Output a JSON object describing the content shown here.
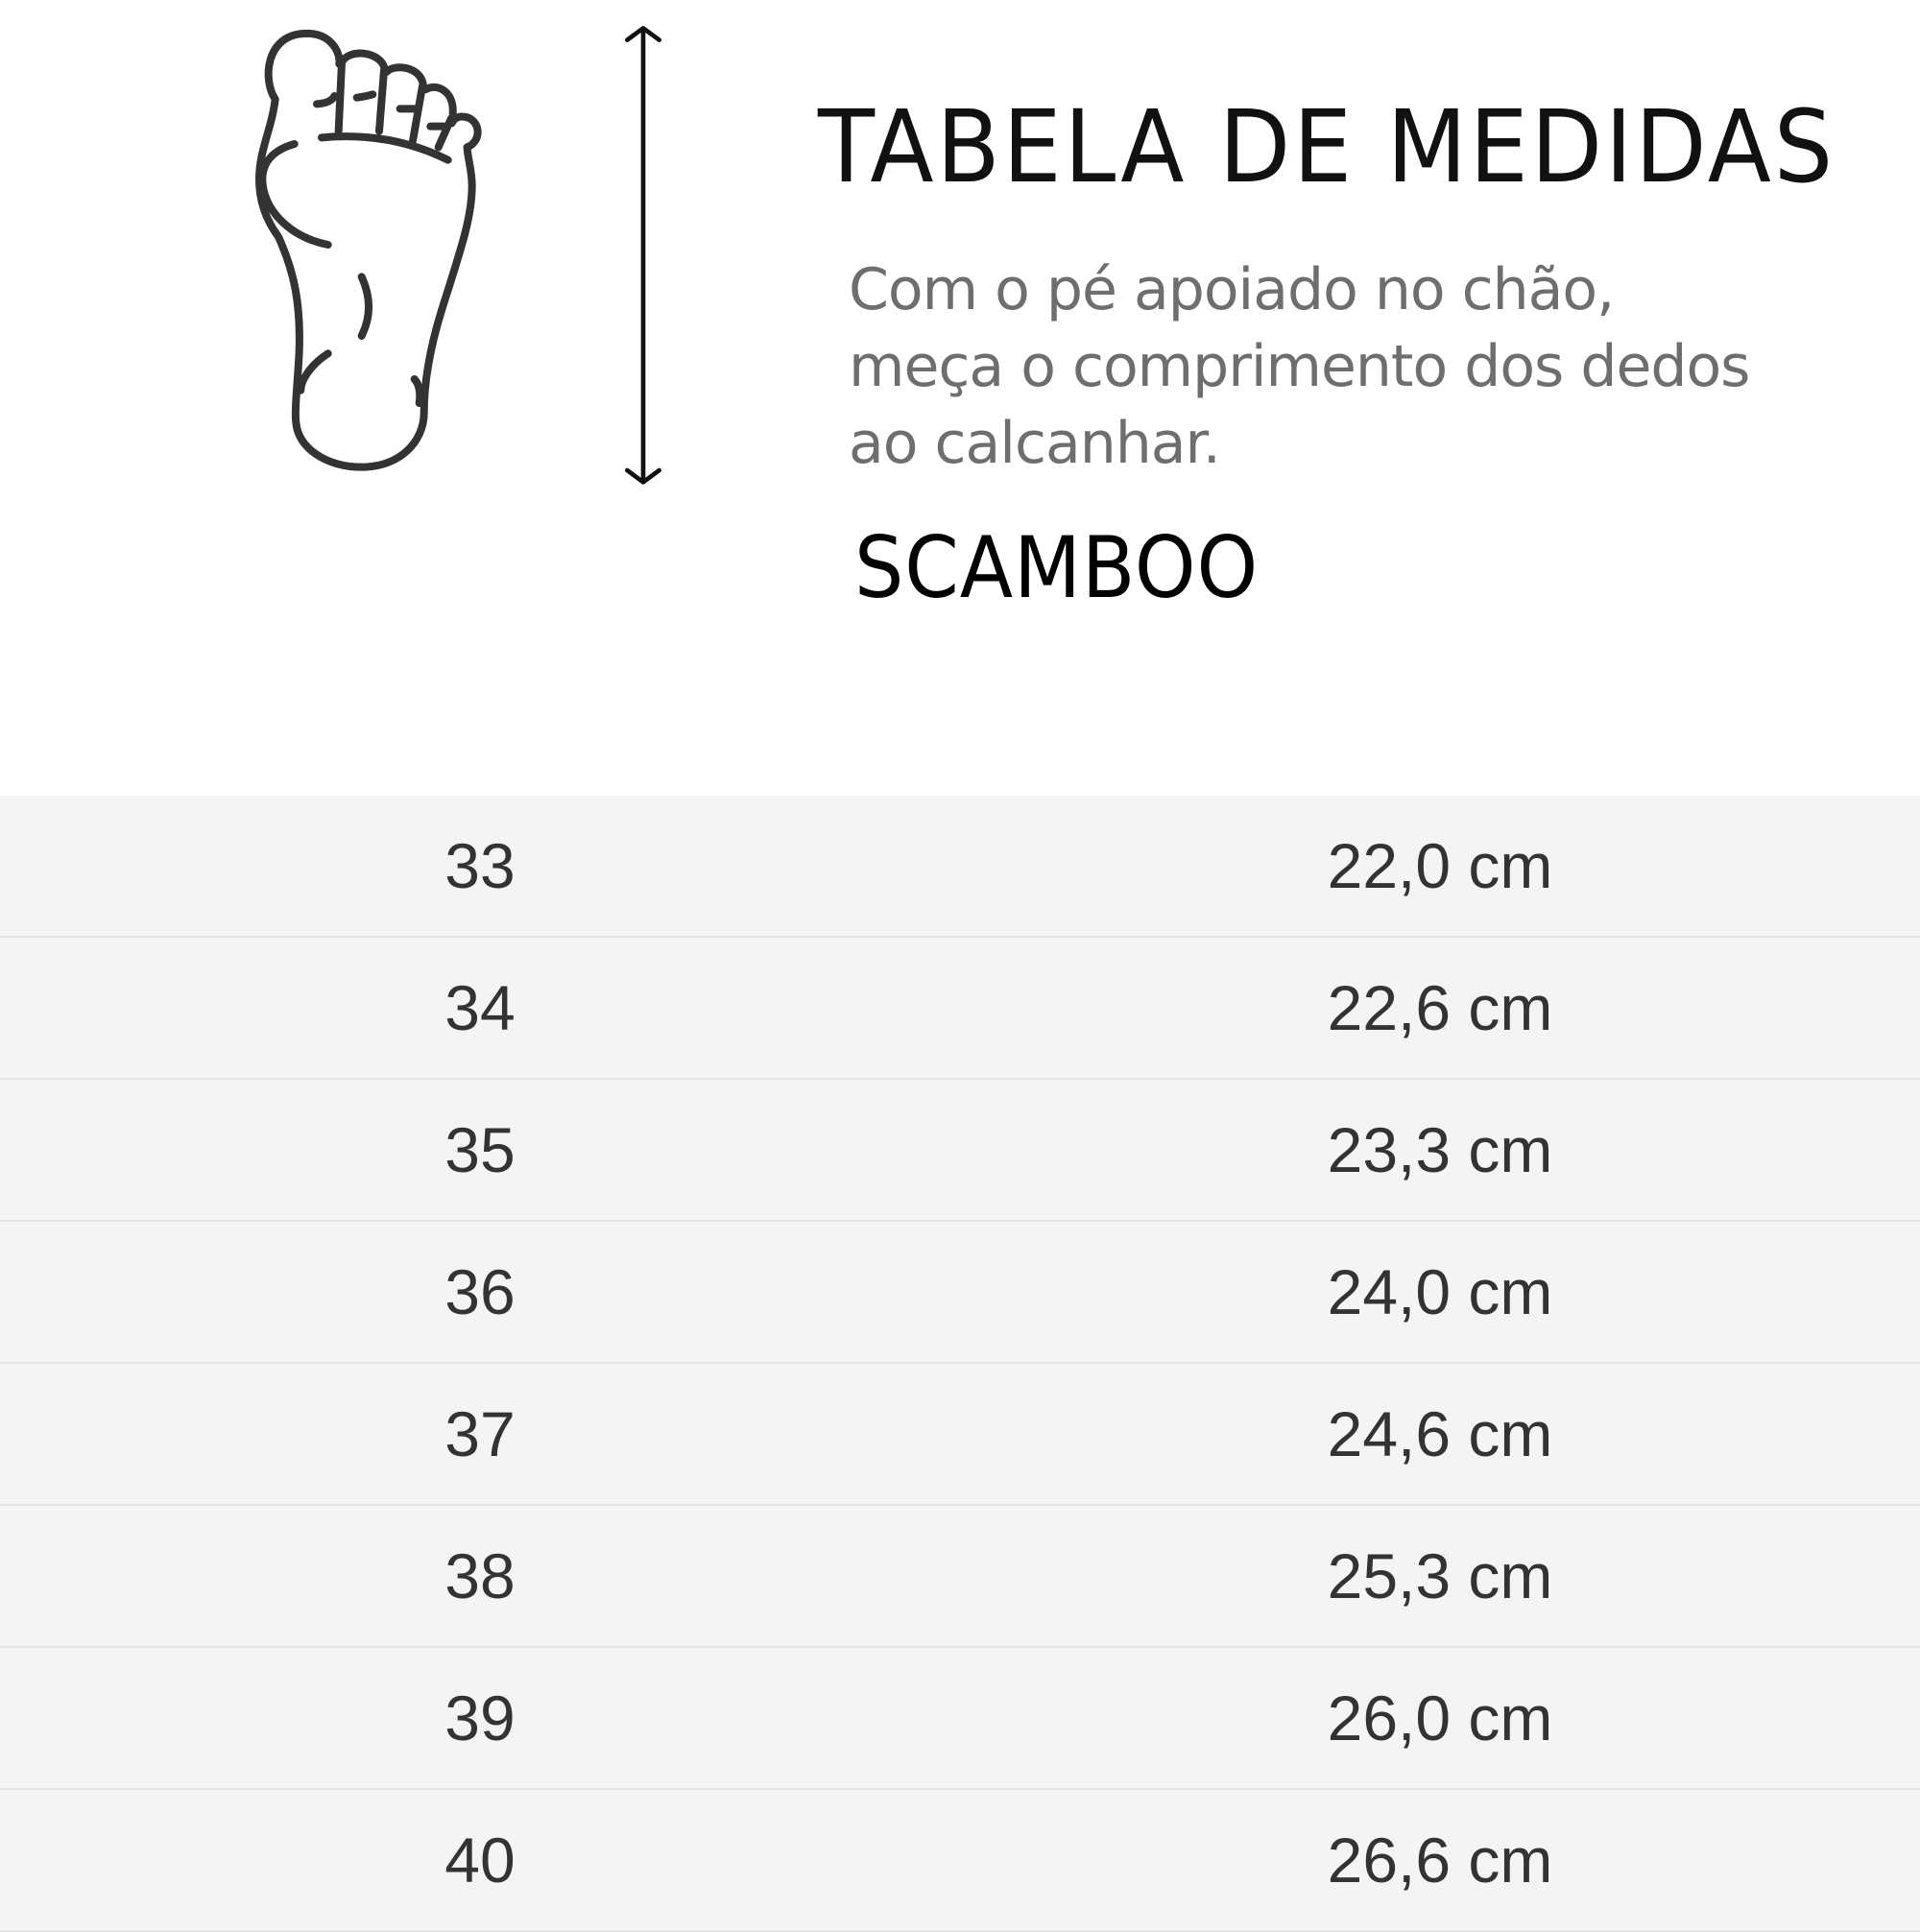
{
  "header": {
    "title": "TABELA DE MEDIDAS",
    "description_lines": [
      "Com o pé apoiado no chão,",
      "meça o comprimento dos dedos",
      "ao calcanhar."
    ],
    "brand": "SCAMBOO"
  },
  "icons": {
    "foot": "foot-outline-icon",
    "arrow": "double-vertical-arrow-icon"
  },
  "colors": {
    "row_background": "#f4f4f4",
    "divider": "#e4e4e4",
    "text": "#333333"
  },
  "table": {
    "rows": [
      {
        "size": "33",
        "length": "22,0 cm"
      },
      {
        "size": "34",
        "length": "22,6 cm"
      },
      {
        "size": "35",
        "length": "23,3 cm"
      },
      {
        "size": "36",
        "length": "24,0 cm"
      },
      {
        "size": "37",
        "length": "24,6 cm"
      },
      {
        "size": "38",
        "length": "25,3 cm"
      },
      {
        "size": "39",
        "length": "26,0 cm"
      },
      {
        "size": "40",
        "length": "26,6 cm"
      }
    ]
  }
}
